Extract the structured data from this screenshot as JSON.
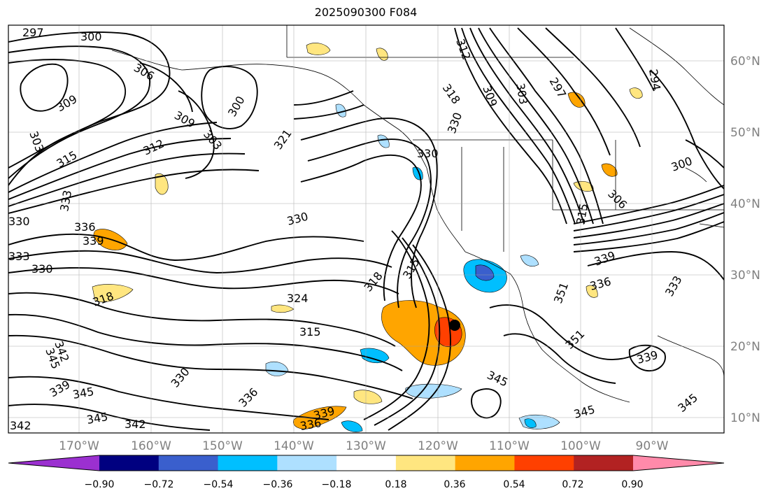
{
  "title": "2025090300 F084",
  "lat_labels": [
    "60°N",
    "50°N",
    "40°N",
    "30°N",
    "20°N",
    "10°N"
  ],
  "lon_labels": [
    "170°W",
    "160°W",
    "150°W",
    "140°W",
    "130°W",
    "120°W",
    "110°W",
    "100°W",
    "90°W"
  ],
  "colorbar": {
    "tick_labels": [
      "−0.90",
      "−0.72",
      "−0.54",
      "−0.36",
      "−0.18",
      "0.18",
      "0.36",
      "0.54",
      "0.72",
      "0.90"
    ],
    "colors": [
      "#9b30d0",
      "#000080",
      "#3a5fcd",
      "#00bfff",
      "#aee0ff",
      "#ffffff",
      "#ffe680",
      "#ffa500",
      "#ff4000",
      "#b22222",
      "#ff8aaa"
    ]
  },
  "contour_labels": [
    "297",
    "300",
    "306",
    "309",
    "300",
    "303",
    "309",
    "303",
    "315",
    "312",
    "321",
    "333",
    "330",
    "336",
    "339",
    "333",
    "330",
    "318",
    "330",
    "324",
    "315",
    "318",
    "315",
    "330",
    "330",
    "312",
    "318",
    "309",
    "303",
    "297",
    "294",
    "300",
    "306",
    "315",
    "339",
    "336",
    "333",
    "351",
    "351",
    "339",
    "345",
    "330",
    "336",
    "339",
    "345",
    "342",
    "345",
    "342",
    "336",
    "339",
    "345",
    "345",
    "345",
    "342"
  ]
}
